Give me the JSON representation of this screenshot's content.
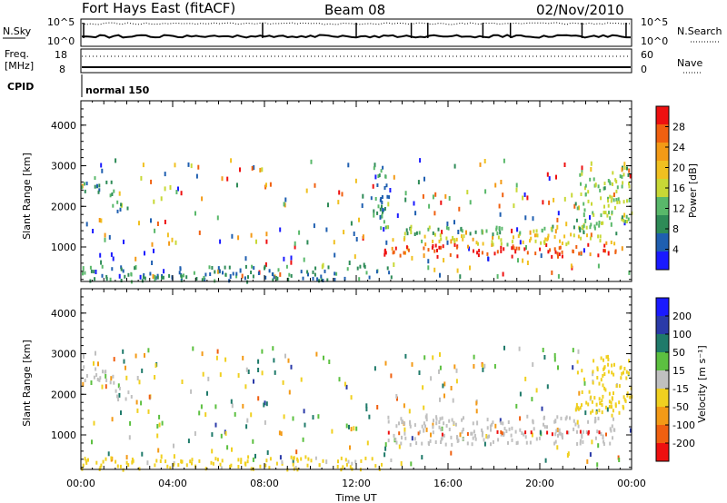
{
  "header": {
    "station": "Fort Hays East (fitACF)",
    "beam": "Beam 08",
    "date": "02/Nov/2010"
  },
  "top_panels": {
    "nsky_label": "N.Sky",
    "nsky_ticks": [
      "10^5",
      "10^0"
    ],
    "nsearch_label": "N.Search",
    "nsearch_ticks": [
      "10^5",
      "10^0"
    ],
    "freq_label": "Freq.",
    "freq_unit": "[MHz]",
    "freq_ticks": [
      "18",
      "8"
    ],
    "nave_label": "Nave",
    "nave_ticks": [
      "60",
      "0"
    ],
    "cpid_label": "CPID",
    "cpid_value": "normal 150"
  },
  "chart_data": [
    {
      "type": "heatmap",
      "name": "power",
      "ylabel": "Slant Range [km]",
      "xlabel": "",
      "ylim": [
        150,
        4600
      ],
      "yticks": [
        1000,
        2000,
        3000,
        4000
      ],
      "xticks": [
        "00:00",
        "04:00",
        "08:00",
        "12:00",
        "16:00",
        "20:00",
        "00:00"
      ],
      "xlim_hours": [
        0,
        24
      ],
      "colorbar": {
        "label": "Power [dB]",
        "ticks": [
          4,
          8,
          12,
          16,
          20,
          24,
          28
        ],
        "range": [
          0,
          32
        ],
        "colors": [
          "#1a1aff",
          "#1f5fb0",
          "#2e8b57",
          "#59b86a",
          "#c8d836",
          "#f0c020",
          "#f39a16",
          "#f06010",
          "#ee1010"
        ]
      },
      "regions": [
        {
          "start": 0.0,
          "end": 1.4,
          "range_lo": 2300,
          "range_hi": 2750,
          "value": 10
        },
        {
          "start": 1.3,
          "end": 2.2,
          "range_lo": 1900,
          "range_hi": 2200,
          "value": 9
        },
        {
          "start": 13.2,
          "end": 23.3,
          "range_lo": 800,
          "range_hi": 1100,
          "value": 28
        },
        {
          "start": 13.2,
          "end": 23.3,
          "range_lo": 1100,
          "range_hi": 1350,
          "value": 18
        },
        {
          "start": 13.2,
          "end": 23.3,
          "range_lo": 1350,
          "range_hi": 1550,
          "value": 12
        },
        {
          "start": 12.6,
          "end": 13.4,
          "range_lo": 1500,
          "range_hi": 3000,
          "value": 8
        },
        {
          "start": 21.5,
          "end": 24.0,
          "range_lo": 1500,
          "range_hi": 3000,
          "value": 14
        },
        {
          "start": 0.0,
          "end": 13.5,
          "range_lo": 180,
          "range_hi": 560,
          "value": 8
        }
      ]
    },
    {
      "type": "heatmap",
      "name": "velocity",
      "ylabel": "Slant Range [km]",
      "xlabel": "Time UT",
      "ylim": [
        150,
        4600
      ],
      "yticks": [
        1000,
        2000,
        3000,
        4000
      ],
      "xticks": [
        "00:00",
        "04:00",
        "08:00",
        "12:00",
        "16:00",
        "20:00",
        "00:00"
      ],
      "xlim_hours": [
        0,
        24
      ],
      "colorbar": {
        "label": "Velocity [m s⁻¹]",
        "ticks": [
          200,
          100,
          50,
          15,
          -15,
          -50,
          -100,
          -200
        ],
        "range": [
          -250,
          250
        ],
        "colors": [
          "#1a1aff",
          "#2a3aa8",
          "#1f7a6a",
          "#5cc040",
          "#c0c0c0",
          "#f0d020",
          "#f39a16",
          "#f06010",
          "#ee1010"
        ]
      },
      "regions": [
        {
          "start": 0.0,
          "end": 1.4,
          "range_lo": 2300,
          "range_hi": 2750,
          "value": 0
        },
        {
          "start": 1.3,
          "end": 2.2,
          "range_lo": 1900,
          "range_hi": 2200,
          "value": 0
        },
        {
          "start": 13.2,
          "end": 23.3,
          "range_lo": 800,
          "range_hi": 1500,
          "value": 0
        },
        {
          "start": 13.2,
          "end": 23.3,
          "range_lo": 1050,
          "range_hi": 1120,
          "value": -200
        },
        {
          "start": 0.0,
          "end": 13.5,
          "range_lo": 180,
          "range_hi": 500,
          "value": -40
        },
        {
          "start": 21.5,
          "end": 24.0,
          "range_lo": 1500,
          "range_hi": 3000,
          "value": -60
        }
      ]
    }
  ]
}
